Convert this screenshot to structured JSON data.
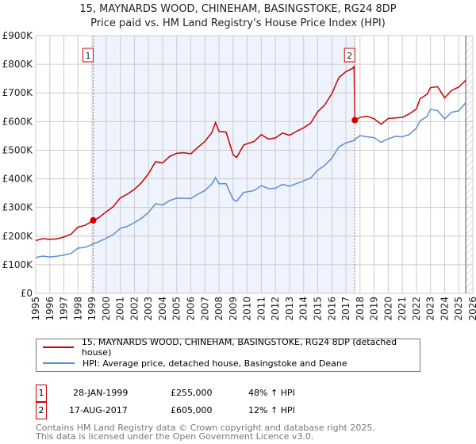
{
  "chart_data": {
    "type": "line",
    "title": "15, MAYNARDS WOOD, CHINEHAM, BASINGSTOKE, RG24 8DP",
    "subtitle": "Price paid vs. HM Land Registry's House Price Index (HPI)",
    "xlim": [
      1995,
      2026
    ],
    "ylim": [
      0,
      900000
    ],
    "x_ticks": [
      "1995",
      "1996",
      "1997",
      "1998",
      "1999",
      "2000",
      "2001",
      "2002",
      "2003",
      "2004",
      "2005",
      "2006",
      "2007",
      "2008",
      "2009",
      "2010",
      "2011",
      "2012",
      "2013",
      "2014",
      "2015",
      "2016",
      "2017",
      "2018",
      "2019",
      "2020",
      "2021",
      "2022",
      "2023",
      "2024",
      "2025",
      "2026"
    ],
    "y_ticks": [
      {
        "v": 0,
        "label": "£0"
      },
      {
        "v": 100000,
        "label": "£100K"
      },
      {
        "v": 200000,
        "label": "£200K"
      },
      {
        "v": 300000,
        "label": "£300K"
      },
      {
        "v": 400000,
        "label": "£400K"
      },
      {
        "v": 500000,
        "label": "£500K"
      },
      {
        "v": 600000,
        "label": "£600K"
      },
      {
        "v": 700000,
        "label": "£700K"
      },
      {
        "v": 800000,
        "label": "£800K"
      },
      {
        "v": 900000,
        "label": "£900K"
      }
    ],
    "grid": true,
    "series": [
      {
        "name": "15, MAYNARDS WOOD, CHINEHAM, BASINGSTOKE, RG24 8DP (detached house)",
        "color": "#cc0000",
        "derived_from": "hpi_indexed_to_sales"
      },
      {
        "name": "HPI: Average price, detached house, Basingstoke and Deane",
        "color": "#5b8fd4",
        "x": [
          1995,
          1995.5,
          1996,
          1996.5,
          1997,
          1997.5,
          1998,
          1998.5,
          1999,
          1999.5,
          2000,
          2000.5,
          2001,
          2001.5,
          2002,
          2002.5,
          2003,
          2003.5,
          2004,
          2004.5,
          2005,
          2005.5,
          2006,
          2006.5,
          2007,
          2007.5,
          2007.75,
          2008,
          2008.5,
          2009,
          2009.25,
          2009.75,
          2010.5,
          2011,
          2011.5,
          2012,
          2012.5,
          2013,
          2013.5,
          2014,
          2014.5,
          2015,
          2015.5,
          2016,
          2016.5,
          2017,
          2017.5,
          2018,
          2018.5,
          2019,
          2019.5,
          2020,
          2020.5,
          2021,
          2021.5,
          2022,
          2022.25,
          2022.75,
          2023,
          2023.5,
          2024,
          2024.5,
          2025,
          2025.5
        ],
        "y": [
          125000,
          128000,
          130000,
          128000,
          133000,
          142000,
          155000,
          162000,
          172000,
          178000,
          195000,
          205000,
          225000,
          237000,
          245000,
          262000,
          285000,
          310000,
          310000,
          325000,
          330000,
          335000,
          330000,
          345000,
          362000,
          380000,
          405000,
          385000,
          380000,
          330000,
          322000,
          350000,
          362000,
          375000,
          365000,
          370000,
          378000,
          375000,
          385000,
          390000,
          405000,
          430000,
          445000,
          475000,
          510000,
          525000,
          535000,
          548000,
          548000,
          545000,
          525000,
          542000,
          548000,
          545000,
          558000,
          575000,
          602000,
          620000,
          640000,
          640000,
          610000,
          630000,
          640000,
          665000
        ]
      }
    ],
    "sales": [
      {
        "id": "1",
        "x": 1999.08,
        "date": "28-JAN-1999",
        "price": 255000,
        "price_label": "£255,000",
        "hpi_note": "48% ↑ HPI"
      },
      {
        "id": "2",
        "x": 2017.63,
        "date": "17-AUG-2017",
        "price": 605000,
        "price_label": "£605,000",
        "hpi_note": "12% ↑ HPI"
      }
    ],
    "forecast_hatch_from": 2025.5
  },
  "footer": {
    "line1": "Contains HM Land Registry data © Crown copyright and database right 2025.",
    "line2": "This data is licensed under the Open Government Licence v3.0."
  }
}
